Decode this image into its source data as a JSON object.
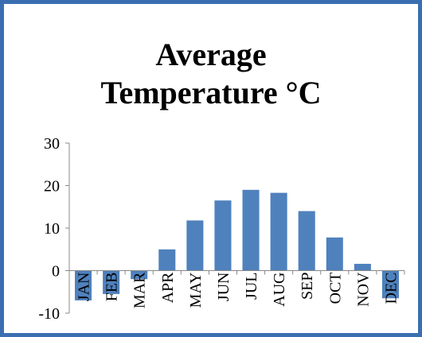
{
  "chart_data": {
    "type": "bar",
    "title": "Average Temperature °C",
    "categories": [
      "JAN",
      "FEB",
      "MAR",
      "APR",
      "MAY",
      "JUN",
      "JUL",
      "AUG",
      "SEP",
      "OCT",
      "NOV",
      "DEC"
    ],
    "values": [
      -7,
      -5.5,
      -2,
      5,
      11.8,
      16.5,
      19,
      18.3,
      14,
      7.8,
      1.6,
      -6.5
    ],
    "color": "#4f81bd",
    "ylim": [
      -10,
      30
    ],
    "yticks": [
      -10,
      0,
      10,
      20,
      30
    ],
    "grid": false
  }
}
